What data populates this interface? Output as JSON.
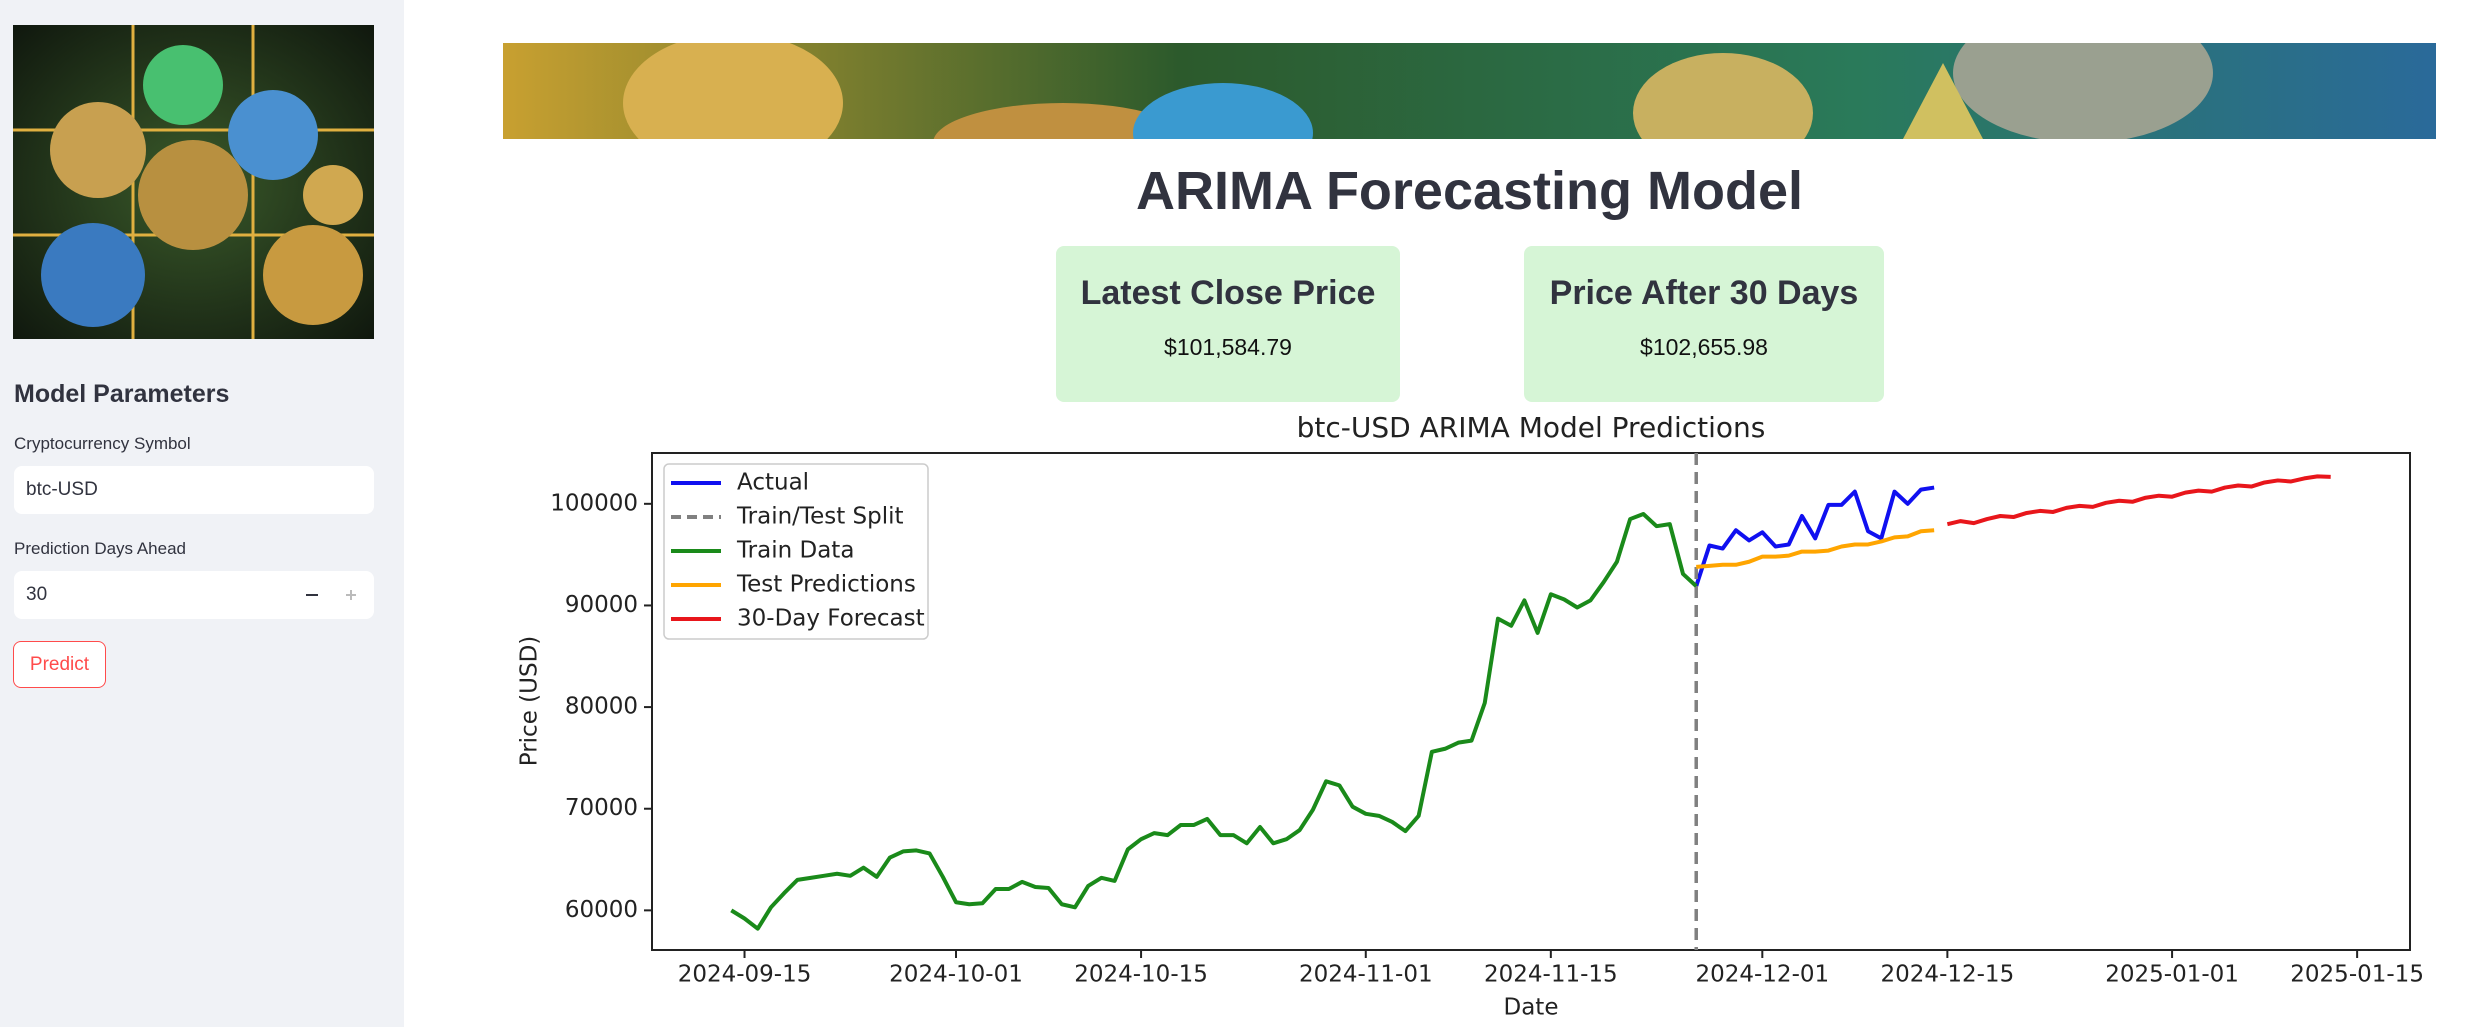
{
  "sidebar": {
    "heading": "Model Parameters",
    "symbol_label": "Cryptocurrency Symbol",
    "symbol_value": "btc-USD",
    "days_label": "Prediction Days Ahead",
    "days_value": 30,
    "button": "Predict"
  },
  "header": {
    "title": "ARIMA Forecasting Model"
  },
  "metrics": [
    {
      "label": "Latest Close Price",
      "value": "$101,584.79"
    },
    {
      "label": "Price After 30 Days",
      "value": "$102,655.98"
    }
  ],
  "chart_data": {
    "type": "line",
    "title": "btc-USD ARIMA Model Predictions",
    "x_label": "Date",
    "y_label": "Price (USD)",
    "xlim": [
      "2024-09-08",
      "2025-01-19"
    ],
    "ylim": [
      56100,
      105000
    ],
    "xticks": [
      "2024-09-15",
      "2024-10-01",
      "2024-10-15",
      "2024-11-01",
      "2024-11-15",
      "2024-12-01",
      "2024-12-15",
      "2025-01-01",
      "2025-01-15"
    ],
    "yticks": [
      60000,
      70000,
      80000,
      90000,
      100000
    ],
    "legend": "upper left",
    "series": [
      {
        "name": "Actual",
        "color": "#1010f0",
        "x": [
          "2024-11-26",
          "2024-11-27",
          "2024-11-28",
          "2024-11-29",
          "2024-11-30",
          "2024-12-01",
          "2024-12-02",
          "2024-12-03",
          "2024-12-04",
          "2024-12-05",
          "2024-12-06",
          "2024-12-07",
          "2024-12-08",
          "2024-12-09",
          "2024-12-10",
          "2024-12-11",
          "2024-12-12",
          "2024-12-13",
          "2024-12-14"
        ],
        "values": [
          91900,
          95900,
          95600,
          97400,
          96400,
          97200,
          95800,
          96000,
          98800,
          96600,
          99900,
          99900,
          101200,
          97300,
          96600,
          101200,
          100000,
          101400,
          101600
        ]
      },
      {
        "name": "Train/Test Split",
        "color": "#808080",
        "dash": true,
        "x_value": "2024-11-26"
      },
      {
        "name": "Train Data",
        "color": "#1a8a1a",
        "x": [
          "2024-09-14",
          "2024-09-15",
          "2024-09-16",
          "2024-09-17",
          "2024-09-18",
          "2024-09-19",
          "2024-09-20",
          "2024-09-21",
          "2024-09-22",
          "2024-09-23",
          "2024-09-24",
          "2024-09-25",
          "2024-09-26",
          "2024-09-27",
          "2024-09-28",
          "2024-09-29",
          "2024-09-30",
          "2024-10-01",
          "2024-10-02",
          "2024-10-03",
          "2024-10-04",
          "2024-10-05",
          "2024-10-06",
          "2024-10-07",
          "2024-10-08",
          "2024-10-09",
          "2024-10-10",
          "2024-10-11",
          "2024-10-12",
          "2024-10-13",
          "2024-10-14",
          "2024-10-15",
          "2024-10-16",
          "2024-10-17",
          "2024-10-18",
          "2024-10-19",
          "2024-10-20",
          "2024-10-21",
          "2024-10-22",
          "2024-10-23",
          "2024-10-24",
          "2024-10-25",
          "2024-10-26",
          "2024-10-27",
          "2024-10-28",
          "2024-10-29",
          "2024-10-30",
          "2024-10-31",
          "2024-11-01",
          "2024-11-02",
          "2024-11-03",
          "2024-11-04",
          "2024-11-05",
          "2024-11-06",
          "2024-11-07",
          "2024-11-08",
          "2024-11-09",
          "2024-11-10",
          "2024-11-11",
          "2024-11-12",
          "2024-11-13",
          "2024-11-14",
          "2024-11-15",
          "2024-11-16",
          "2024-11-17",
          "2024-11-18",
          "2024-11-19",
          "2024-11-20",
          "2024-11-21",
          "2024-11-22",
          "2024-11-23",
          "2024-11-24",
          "2024-11-25",
          "2024-11-26"
        ],
        "values": [
          60000,
          59200,
          58200,
          60300,
          61700,
          63000,
          63200,
          63400,
          63600,
          63400,
          64200,
          63300,
          65200,
          65800,
          65900,
          65600,
          63300,
          60800,
          60600,
          60700,
          62100,
          62100,
          62800,
          62300,
          62200,
          60600,
          60300,
          62400,
          63200,
          62900,
          66000,
          67000,
          67600,
          67400,
          68400,
          68400,
          69000,
          67400,
          67400,
          66600,
          68200,
          66600,
          67000,
          67900,
          69900,
          72700,
          72300,
          70200,
          69500,
          69300,
          68700,
          67800,
          69300,
          75600,
          75900,
          76500,
          76700,
          80400,
          88700,
          88000,
          90500,
          87300,
          91100,
          90600,
          89800,
          90500,
          92300,
          94300,
          98500,
          99000,
          97800,
          98000,
          93100,
          91900
        ]
      },
      {
        "name": "Test Predictions",
        "color": "#ffa500",
        "x": [
          "2024-11-26",
          "2024-11-27",
          "2024-11-28",
          "2024-11-29",
          "2024-11-30",
          "2024-12-01",
          "2024-12-02",
          "2024-12-03",
          "2024-12-04",
          "2024-12-05",
          "2024-12-06",
          "2024-12-07",
          "2024-12-08",
          "2024-12-09",
          "2024-12-10",
          "2024-12-11",
          "2024-12-12",
          "2024-12-13",
          "2024-12-14"
        ],
        "values": [
          93800,
          93900,
          94000,
          94000,
          94300,
          94800,
          94800,
          94900,
          95300,
          95300,
          95400,
          95800,
          96000,
          96000,
          96300,
          96700,
          96800,
          97300,
          97400
        ]
      },
      {
        "name": "30-Day Forecast",
        "color": "#e8161b",
        "x": [
          "2024-12-15",
          "2024-12-16",
          "2024-12-17",
          "2024-12-18",
          "2024-12-19",
          "2024-12-20",
          "2024-12-21",
          "2024-12-22",
          "2024-12-23",
          "2024-12-24",
          "2024-12-25",
          "2024-12-26",
          "2024-12-27",
          "2024-12-28",
          "2024-12-29",
          "2024-12-30",
          "2024-12-31",
          "2025-01-01",
          "2025-01-02",
          "2025-01-03",
          "2025-01-04",
          "2025-01-05",
          "2025-01-06",
          "2025-01-07",
          "2025-01-08",
          "2025-01-09",
          "2025-01-10",
          "2025-01-11",
          "2025-01-12",
          "2025-01-13"
        ],
        "values": [
          98000,
          98300,
          98100,
          98500,
          98800,
          98700,
          99100,
          99300,
          99200,
          99600,
          99800,
          99700,
          100100,
          100300,
          100200,
          100600,
          100800,
          100700,
          101100,
          101300,
          101200,
          101600,
          101800,
          101700,
          102100,
          102300,
          102200,
          102500,
          102700,
          102656
        ]
      }
    ]
  }
}
